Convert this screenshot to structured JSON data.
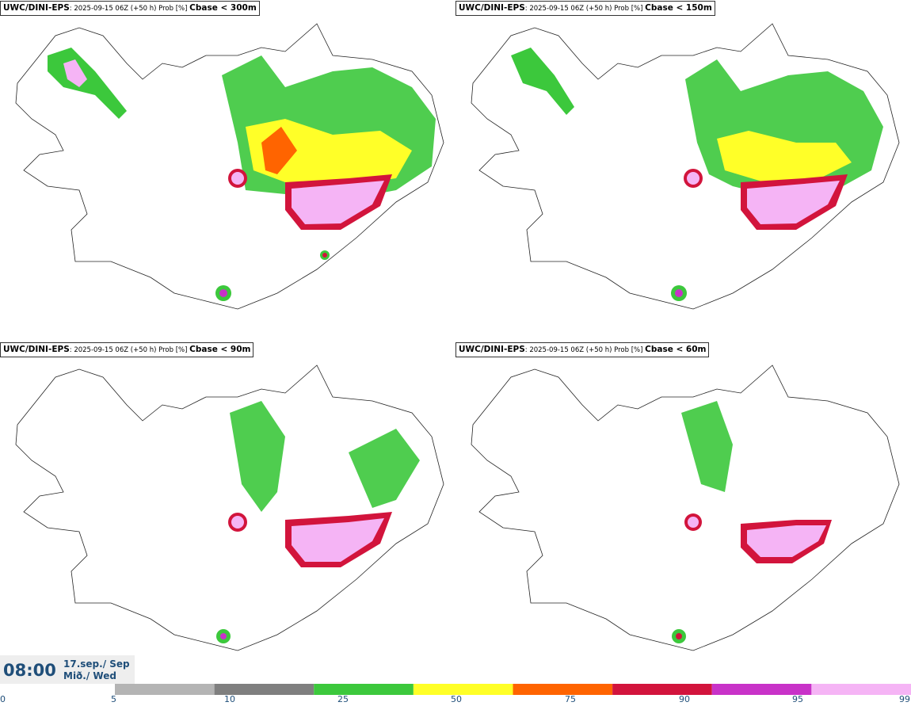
{
  "panels": [
    {
      "model": "UWC/DINI-EPS",
      "run": ": 2025-09-15 06Z (+50 h) Prob [%]",
      "label": "Cbase < 300m"
    },
    {
      "model": "UWC/DINI-EPS",
      "run": ": 2025-09-15 06Z (+50 h) Prob [%]",
      "label": "Cbase < 150m"
    },
    {
      "model": "UWC/DINI-EPS",
      "run": ": 2025-09-15 06Z (+50 h) Prob [%]",
      "label": "Cbase < 90m"
    },
    {
      "model": "UWC/DINI-EPS",
      "run": ": 2025-09-15 06Z (+50 h) Prob [%]",
      "label": "Cbase < 60m"
    }
  ],
  "valid": {
    "time": "08:00",
    "date_line1": "17.sep./ Sep",
    "date_line2": "Mið./ Wed"
  },
  "colorbar": {
    "ticks": [
      "0",
      "5",
      "10",
      "25",
      "50",
      "75",
      "90",
      "95",
      "99"
    ],
    "colors": [
      "#ffffff",
      "#b4b4b4",
      "#7f7f7f",
      "#3cc83c",
      "#ffff28",
      "#ff6400",
      "#d2143c",
      "#c832c8",
      "#f5b4f5"
    ]
  }
}
